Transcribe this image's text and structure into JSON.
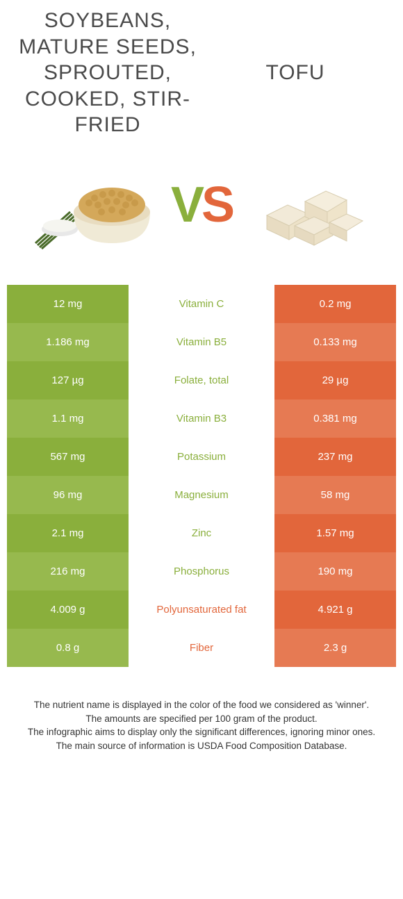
{
  "colors": {
    "green_dark": "#8aaf3c",
    "green_light": "#97b94e",
    "orange_dark": "#e2663b",
    "orange_light": "#e67a53",
    "text_green": "#8aaf3c",
    "text_orange": "#e2663b"
  },
  "header": {
    "left": "Soybeans, mature seeds, sprouted, cooked, stir-fried",
    "right": "Tofu"
  },
  "vs": {
    "v": "V",
    "s": "S"
  },
  "rows": [
    {
      "left": "12 mg",
      "mid": "Vitamin C",
      "right": "0.2 mg",
      "winner": "left"
    },
    {
      "left": "1.186 mg",
      "mid": "Vitamin B5",
      "right": "0.133 mg",
      "winner": "left"
    },
    {
      "left": "127 µg",
      "mid": "Folate, total",
      "right": "29 µg",
      "winner": "left"
    },
    {
      "left": "1.1 mg",
      "mid": "Vitamin B3",
      "right": "0.381 mg",
      "winner": "left"
    },
    {
      "left": "567 mg",
      "mid": "Potassium",
      "right": "237 mg",
      "winner": "left"
    },
    {
      "left": "96 mg",
      "mid": "Magnesium",
      "right": "58 mg",
      "winner": "left"
    },
    {
      "left": "2.1 mg",
      "mid": "Zinc",
      "right": "1.57 mg",
      "winner": "left"
    },
    {
      "left": "216 mg",
      "mid": "Phosphorus",
      "right": "190 mg",
      "winner": "left"
    },
    {
      "left": "4.009 g",
      "mid": "Polyunsaturated fat",
      "right": "4.921 g",
      "winner": "right"
    },
    {
      "left": "0.8 g",
      "mid": "Fiber",
      "right": "2.3 g",
      "winner": "right"
    }
  ],
  "footer": {
    "line1": "The nutrient name is displayed in the color of the food we considered as 'winner'.",
    "line2": "The amounts are specified per 100 gram of the product.",
    "line3": "The infographic aims to display only the significant differences, ignoring minor ones.",
    "line4": "The main source of information is USDA Food Composition Database."
  }
}
